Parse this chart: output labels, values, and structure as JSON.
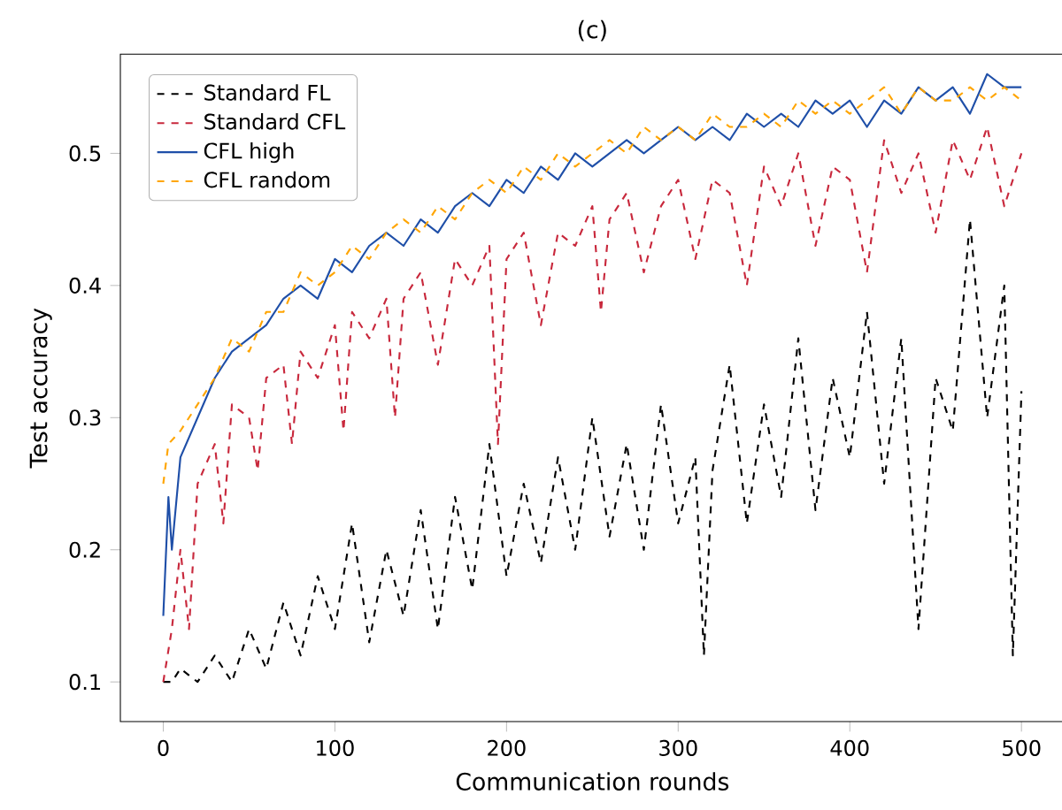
{
  "chart_data": {
    "type": "line",
    "title": "(c)",
    "xlabel": "Communication rounds",
    "ylabel": "Test accuracy",
    "xlim": [
      -25,
      525
    ],
    "ylim": [
      0.07,
      0.575
    ],
    "xticks": [
      0,
      100,
      200,
      300,
      400,
      500
    ],
    "yticks": [
      0.1,
      0.2,
      0.3,
      0.4,
      0.5
    ],
    "legend": "top left",
    "grid": false,
    "series": [
      {
        "name": "Standard FL",
        "color": "#000000",
        "line_style": "dashed",
        "x": [
          0,
          5,
          10,
          20,
          30,
          40,
          50,
          60,
          70,
          80,
          90,
          100,
          110,
          120,
          130,
          140,
          150,
          160,
          170,
          180,
          190,
          200,
          210,
          220,
          230,
          240,
          250,
          260,
          270,
          280,
          290,
          300,
          310,
          315,
          320,
          330,
          340,
          350,
          360,
          370,
          380,
          390,
          400,
          410,
          420,
          430,
          440,
          450,
          460,
          470,
          480,
          490,
          495,
          500
        ],
        "values": [
          0.1,
          0.1,
          0.11,
          0.1,
          0.12,
          0.1,
          0.14,
          0.11,
          0.16,
          0.12,
          0.18,
          0.14,
          0.22,
          0.13,
          0.2,
          0.15,
          0.23,
          0.14,
          0.24,
          0.17,
          0.28,
          0.18,
          0.25,
          0.19,
          0.27,
          0.2,
          0.3,
          0.21,
          0.28,
          0.2,
          0.31,
          0.22,
          0.27,
          0.12,
          0.26,
          0.34,
          0.22,
          0.31,
          0.24,
          0.36,
          0.23,
          0.33,
          0.27,
          0.38,
          0.25,
          0.36,
          0.14,
          0.33,
          0.29,
          0.45,
          0.3,
          0.4,
          0.12,
          0.32
        ]
      },
      {
        "name": "Standard CFL",
        "color": "#c8283c",
        "line_style": "dashed",
        "x": [
          0,
          5,
          10,
          15,
          20,
          30,
          35,
          40,
          50,
          55,
          60,
          70,
          75,
          80,
          90,
          100,
          105,
          110,
          120,
          130,
          135,
          140,
          150,
          160,
          170,
          180,
          190,
          195,
          200,
          210,
          220,
          230,
          240,
          250,
          255,
          260,
          270,
          280,
          290,
          300,
          310,
          320,
          330,
          340,
          350,
          360,
          370,
          380,
          390,
          400,
          410,
          420,
          430,
          440,
          450,
          460,
          470,
          480,
          490,
          500
        ],
        "values": [
          0.1,
          0.14,
          0.2,
          0.14,
          0.25,
          0.28,
          0.22,
          0.31,
          0.3,
          0.26,
          0.33,
          0.34,
          0.28,
          0.35,
          0.33,
          0.37,
          0.29,
          0.38,
          0.36,
          0.39,
          0.3,
          0.39,
          0.41,
          0.34,
          0.42,
          0.4,
          0.43,
          0.28,
          0.42,
          0.44,
          0.37,
          0.44,
          0.43,
          0.46,
          0.38,
          0.45,
          0.47,
          0.41,
          0.46,
          0.48,
          0.42,
          0.48,
          0.47,
          0.4,
          0.49,
          0.46,
          0.5,
          0.43,
          0.49,
          0.48,
          0.41,
          0.51,
          0.47,
          0.5,
          0.44,
          0.51,
          0.48,
          0.52,
          0.46,
          0.5
        ]
      },
      {
        "name": "CFL high",
        "color": "#1f4fa8",
        "line_style": "solid",
        "x": [
          0,
          3,
          5,
          10,
          20,
          30,
          40,
          50,
          60,
          70,
          80,
          90,
          100,
          110,
          120,
          130,
          140,
          150,
          160,
          170,
          180,
          190,
          200,
          210,
          220,
          230,
          240,
          250,
          260,
          270,
          280,
          290,
          300,
          310,
          320,
          330,
          340,
          350,
          360,
          370,
          380,
          390,
          400,
          410,
          420,
          430,
          440,
          450,
          460,
          470,
          480,
          490,
          500
        ],
        "values": [
          0.15,
          0.24,
          0.2,
          0.27,
          0.3,
          0.33,
          0.35,
          0.36,
          0.37,
          0.39,
          0.4,
          0.39,
          0.42,
          0.41,
          0.43,
          0.44,
          0.43,
          0.45,
          0.44,
          0.46,
          0.47,
          0.46,
          0.48,
          0.47,
          0.49,
          0.48,
          0.5,
          0.49,
          0.5,
          0.51,
          0.5,
          0.51,
          0.52,
          0.51,
          0.52,
          0.51,
          0.53,
          0.52,
          0.53,
          0.52,
          0.54,
          0.53,
          0.54,
          0.52,
          0.54,
          0.53,
          0.55,
          0.54,
          0.55,
          0.53,
          0.56,
          0.55,
          0.55
        ]
      },
      {
        "name": "CFL random",
        "color": "#ffa500",
        "line_style": "dashed",
        "x": [
          0,
          3,
          10,
          20,
          30,
          40,
          50,
          60,
          70,
          80,
          90,
          100,
          110,
          120,
          130,
          140,
          150,
          160,
          170,
          180,
          190,
          200,
          210,
          220,
          230,
          240,
          250,
          260,
          270,
          280,
          290,
          300,
          310,
          320,
          330,
          340,
          350,
          360,
          370,
          380,
          390,
          400,
          410,
          420,
          430,
          440,
          450,
          460,
          470,
          480,
          490,
          500
        ],
        "values": [
          0.25,
          0.28,
          0.29,
          0.31,
          0.33,
          0.36,
          0.35,
          0.38,
          0.38,
          0.41,
          0.4,
          0.41,
          0.43,
          0.42,
          0.44,
          0.45,
          0.44,
          0.46,
          0.45,
          0.47,
          0.48,
          0.47,
          0.49,
          0.48,
          0.5,
          0.49,
          0.5,
          0.51,
          0.5,
          0.52,
          0.51,
          0.52,
          0.51,
          0.53,
          0.52,
          0.52,
          0.53,
          0.52,
          0.54,
          0.53,
          0.54,
          0.53,
          0.54,
          0.55,
          0.53,
          0.55,
          0.54,
          0.54,
          0.55,
          0.54,
          0.55,
          0.54
        ]
      }
    ]
  }
}
